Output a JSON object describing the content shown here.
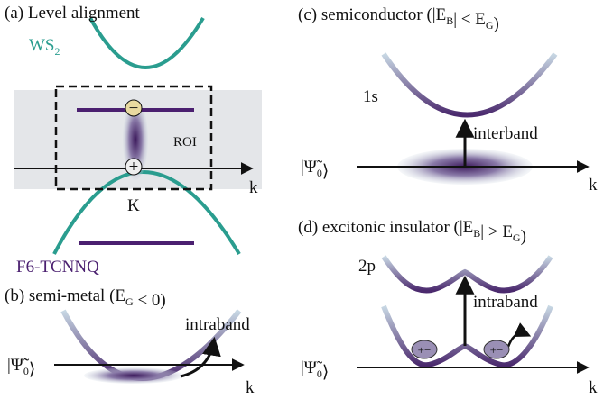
{
  "panel_a": {
    "title": "(a) Level alignment",
    "ws2": [
      "WS",
      "2"
    ],
    "roi": "ROI",
    "valley": "K",
    "axis": "k",
    "molecule": "F6-TCNNQ",
    "electron": "−",
    "hole": "+"
  },
  "panel_b": {
    "title": [
      "(b) semi-metal (E",
      "G",
      " < 0)"
    ],
    "arrow_label": "intraband",
    "state": [
      "|Ψ̃",
      "0",
      "⟩"
    ],
    "axis": "k"
  },
  "panel_c": {
    "title": [
      "(c)  semiconductor (|E",
      "B",
      "| < E",
      "G",
      ")"
    ],
    "level": "1s",
    "arrow_label": "interband",
    "state": [
      "|Ψ̃",
      "0",
      "⟩"
    ],
    "axis": "k"
  },
  "panel_d": {
    "title": [
      "(d)  excitonic insulator (|E",
      "B",
      "| > E",
      "G",
      ")"
    ],
    "level": "2p",
    "arrow_label": "intraband",
    "state": [
      "|Ψ̃",
      "0",
      "⟩"
    ],
    "axis": "k",
    "exciton": [
      "+",
      "−"
    ]
  }
}
